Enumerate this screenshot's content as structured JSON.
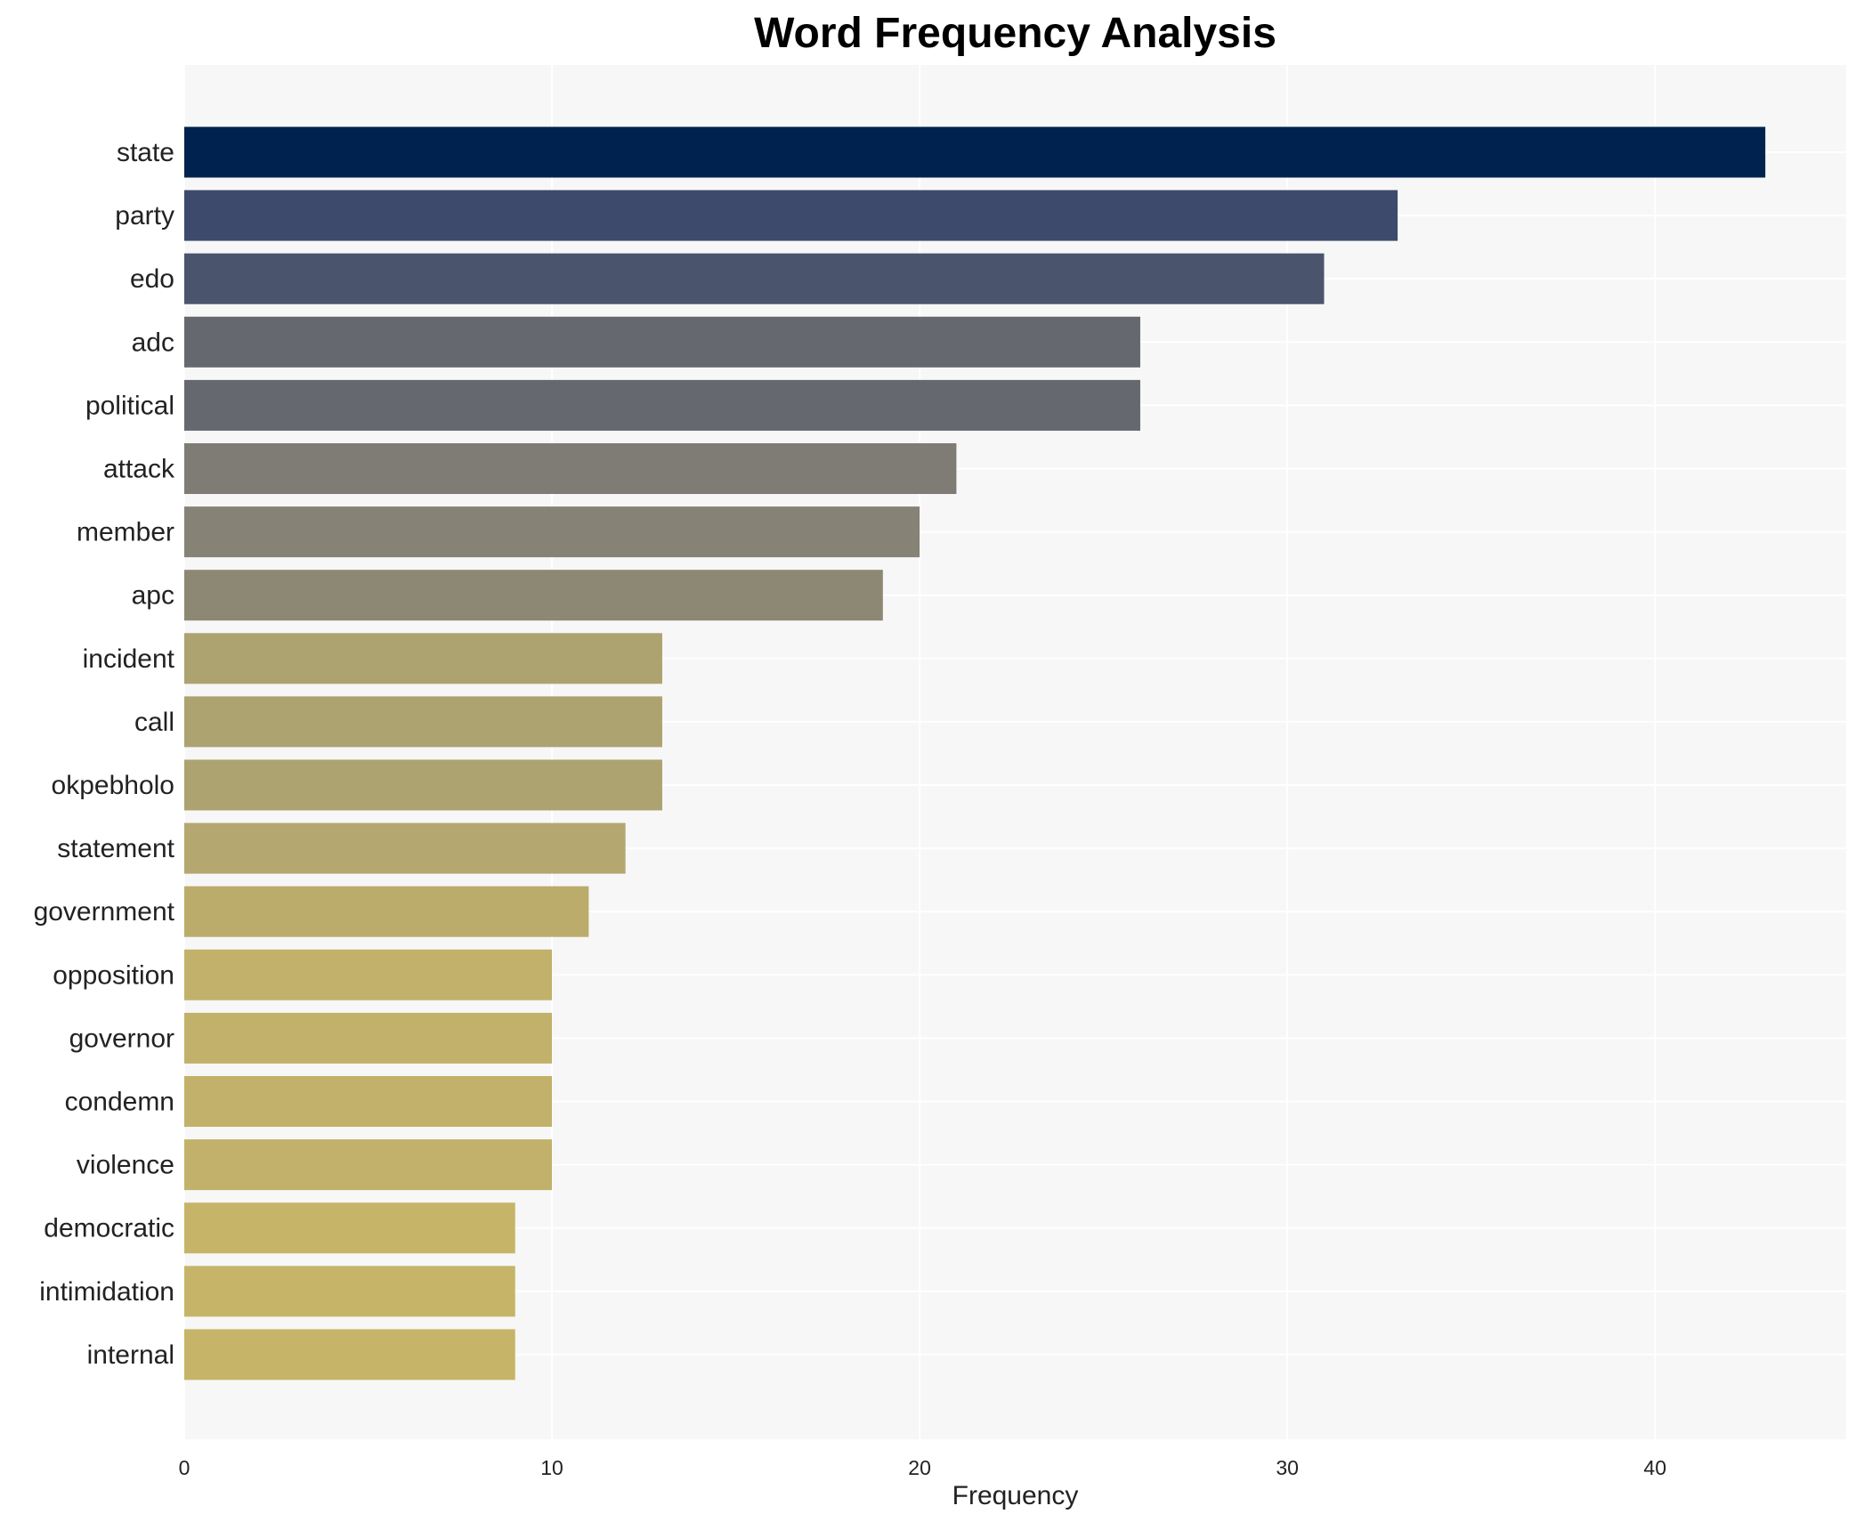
{
  "chart_data": {
    "type": "bar",
    "orientation": "horizontal",
    "title": "Word Frequency Analysis",
    "xlabel": "Frequency",
    "ylabel": "",
    "xlim": [
      0,
      45.2
    ],
    "xticks": [
      0,
      10,
      20,
      30,
      40
    ],
    "grid": true,
    "categories": [
      "state",
      "party",
      "edo",
      "adc",
      "political",
      "attack",
      "member",
      "apc",
      "incident",
      "call",
      "okpebholo",
      "statement",
      "government",
      "opposition",
      "governor",
      "condemn",
      "violence",
      "democratic",
      "intimidation",
      "internal"
    ],
    "values": [
      43,
      33,
      31,
      26,
      26,
      21,
      20,
      19,
      13,
      13,
      13,
      12,
      11,
      10,
      10,
      10,
      10,
      9,
      9,
      9
    ],
    "colors": [
      "#00224e",
      "#3d4a6b",
      "#4a546d",
      "#666870",
      "#666870",
      "#7f7c75",
      "#868276",
      "#8d8874",
      "#ada371",
      "#ada371",
      "#ada371",
      "#b4a76f",
      "#bcac6c",
      "#c2b16a",
      "#c2b16a",
      "#c2b16a",
      "#c2b16a",
      "#c6b568",
      "#c6b568",
      "#c6b568"
    ],
    "background": "#f7f7f7"
  }
}
